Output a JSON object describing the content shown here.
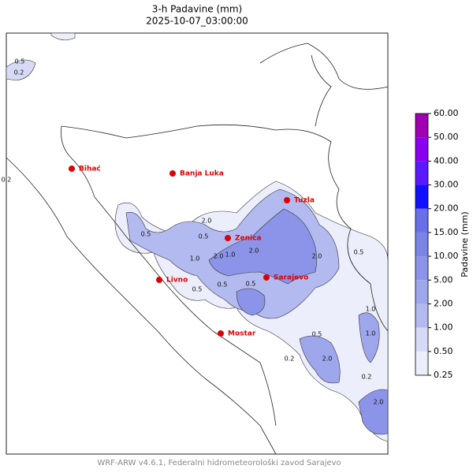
{
  "header": {
    "title": "3-h Padavine (mm)",
    "subtitle": "2025-10-07_03:00:00"
  },
  "cities": [
    "Bihać",
    "Banja Luka",
    "Tuzla",
    "Zenica",
    "Livno",
    "Sarajevo",
    "Mostar"
  ],
  "contour_labels": [
    "0.5",
    "0.2",
    "0.2",
    "0.5",
    "2.0",
    "0.5",
    "2.0",
    "1.0",
    "2.0",
    "0.5",
    "2.0",
    "0.5",
    "1.0",
    "0.5",
    "2.0",
    "0.2",
    "0.5",
    "1.0",
    "0.2",
    "1.0",
    "2.0",
    "0.5"
  ],
  "colorbar": {
    "label": "Padavine (mm)",
    "ticks": [
      {
        "value": 0.25,
        "label": "0.25"
      },
      {
        "value": 0.5,
        "label": "0.50"
      },
      {
        "value": 1,
        "label": "1.00"
      },
      {
        "value": 2,
        "label": "2.00"
      },
      {
        "value": 5,
        "label": "5.00"
      },
      {
        "value": 10,
        "label": "10.00"
      },
      {
        "value": 15,
        "label": "15.00"
      },
      {
        "value": 20,
        "label": "20.00"
      },
      {
        "value": 30,
        "label": "30.00"
      },
      {
        "value": 40,
        "label": "40.00"
      },
      {
        "value": 50,
        "label": "50.00"
      },
      {
        "value": 60,
        "label": "60.00"
      }
    ],
    "colors": [
      "#eceefb",
      "#d6daf6",
      "#b3baef",
      "#9ea6ec",
      "#8b94e8",
      "#7a83e6",
      "#6870e8",
      "#1010ff",
      "#5a1aff",
      "#8a00ee",
      "#a000b0"
    ]
  },
  "footer": "WRF-ARW v4.6.1, Federalni hidrometeorološki zavod Sarajevo"
}
